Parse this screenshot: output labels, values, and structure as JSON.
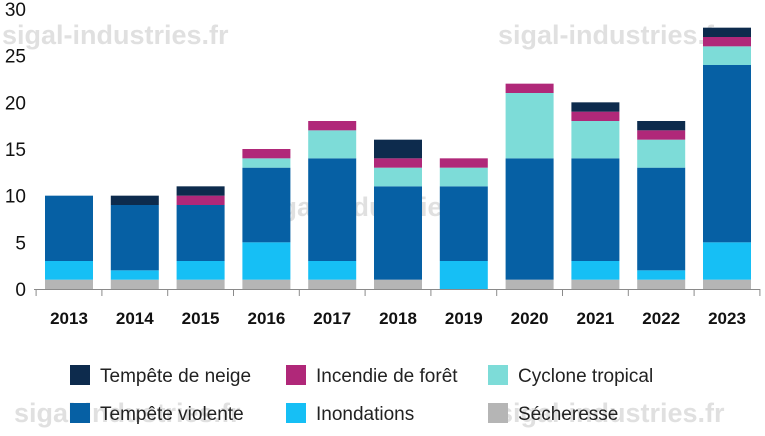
{
  "watermark_text": "sigal-industries.fr",
  "chart_data": {
    "type": "bar",
    "stacked": true,
    "categories": [
      "2013",
      "2014",
      "2015",
      "2016",
      "2017",
      "2018",
      "2019",
      "2020",
      "2021",
      "2022",
      "2023"
    ],
    "ylim": [
      0,
      30
    ],
    "yticks": [
      0,
      5,
      10,
      15,
      20,
      25,
      30
    ],
    "grid": false,
    "legend_position": "bottom",
    "series": [
      {
        "name": "Sécheresse",
        "color": "#b5b5b5",
        "values": [
          1,
          1,
          1,
          1,
          1,
          1,
          0,
          1,
          1,
          1,
          1
        ]
      },
      {
        "name": "Inondations",
        "color": "#16bff5",
        "values": [
          2,
          1,
          2,
          4,
          2,
          0,
          3,
          0,
          2,
          1,
          4
        ]
      },
      {
        "name": "Tempête violente",
        "color": "#0660a4",
        "values": [
          7,
          7,
          6,
          8,
          11,
          10,
          8,
          13,
          11,
          11,
          19
        ]
      },
      {
        "name": "Cyclone tropical",
        "color": "#7ddcd8",
        "values": [
          0,
          0,
          0,
          1,
          3,
          2,
          2,
          7,
          4,
          3,
          2
        ]
      },
      {
        "name": "Incendie de forêt",
        "color": "#b02879",
        "values": [
          0,
          0,
          1,
          1,
          1,
          1,
          1,
          1,
          1,
          1,
          1
        ]
      },
      {
        "name": "Tempête de neige",
        "color": "#0d2b4d",
        "values": [
          0,
          1,
          1,
          0,
          0,
          2,
          0,
          0,
          1,
          1,
          1
        ]
      }
    ],
    "legend_order": [
      "Tempête de neige",
      "Incendie de forêt",
      "Cyclone tropical",
      "Tempête violente",
      "Inondations",
      "Sécheresse"
    ]
  }
}
